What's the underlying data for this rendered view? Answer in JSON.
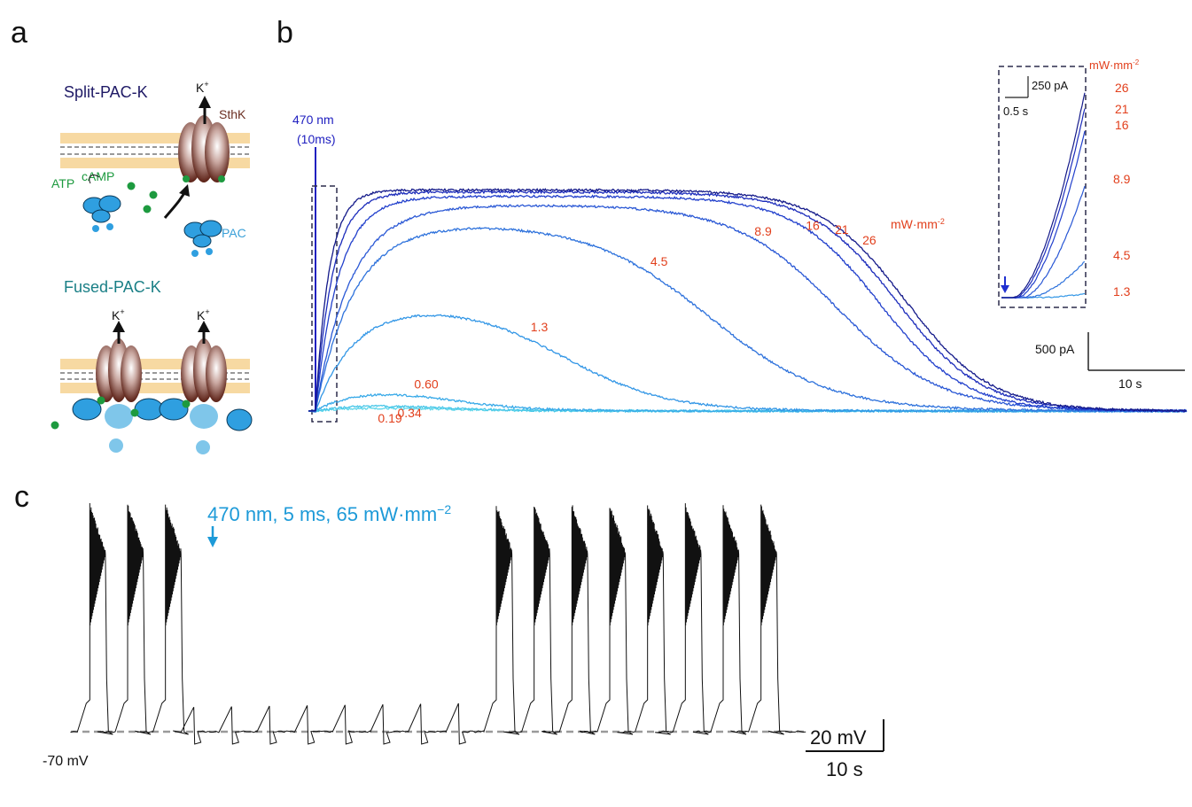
{
  "panels": {
    "a": "a",
    "b": "b",
    "c": "c"
  },
  "panel_a": {
    "split_title": "Split-PAC-K",
    "fused_title": "Fused-PAC-K",
    "k_ion": "K",
    "k_sup": "+",
    "sthk": "SthK",
    "atp": "ATP",
    "camp": "cAMP",
    "pac": "PAC"
  },
  "panel_b": {
    "stim_wavelength": "470 nm",
    "stim_duration": "(10ms)",
    "unit_base": "mW·mm",
    "unit_exp": "-2",
    "scale_current": "500 pA",
    "scale_time": "10 s",
    "inset": {
      "scale_current": "250 pA",
      "scale_time": "0.5 s",
      "unit_base": "mW·mm",
      "unit_exp": "-2",
      "intensity_labels": [
        "26",
        "21",
        "16",
        "8.9",
        "4.5",
        "1.3"
      ]
    }
  },
  "panel_c": {
    "stim_prefix": "470 nm, 5 ms, 65 mW·mm",
    "stim_exp": "−2",
    "baseline_label": "-70 mV",
    "scale_voltage": "20 mV",
    "scale_time": "10 s"
  },
  "colors": {
    "membrane": "#f3c97a",
    "channel": "#6b2f22",
    "pac": "#2f9fe0",
    "camp": "#1d9a3f",
    "labels": "#e2401d",
    "trace": "#111111",
    "baseline": "#9a9a9a"
  },
  "chart_data": [
    {
      "type": "line",
      "panel": "b",
      "xlabel": "",
      "ylabel": "",
      "x_unit": "s",
      "y_unit": "pA",
      "legend_title": "mW·mm-2",
      "series": [
        {
          "name": "0.19",
          "color": "#5fd6ea",
          "peak_pA": 20,
          "peak_time_s": 10,
          "half_decay_s": 14,
          "decay_width_s": 5
        },
        {
          "name": "0.34",
          "color": "#48c6e8",
          "peak_pA": 35,
          "peak_time_s": 10,
          "half_decay_s": 14,
          "decay_width_s": 5
        },
        {
          "name": "0.60",
          "color": "#37a9e8",
          "peak_pA": 115,
          "peak_time_s": 10,
          "half_decay_s": 15,
          "decay_width_s": 5
        },
        {
          "name": "1.3",
          "color": "#3296e6",
          "peak_pA": 510,
          "peak_time_s": 10,
          "half_decay_s": 29,
          "decay_width_s": 6
        },
        {
          "name": "4.5",
          "color": "#2e72dc",
          "peak_pA": 890,
          "peak_time_s": 10,
          "half_decay_s": 46,
          "decay_width_s": 7
        },
        {
          "name": "8.9",
          "color": "#2a58d5",
          "peak_pA": 970,
          "peak_time_s": 9,
          "half_decay_s": 61,
          "decay_width_s": 6
        },
        {
          "name": "16",
          "color": "#2240cc",
          "peak_pA": 1010,
          "peak_time_s": 6,
          "half_decay_s": 66,
          "decay_width_s": 5
        },
        {
          "name": "21",
          "color": "#1c2cbb",
          "peak_pA": 1030,
          "peak_time_s": 4.5,
          "half_decay_s": 68,
          "decay_width_s": 5
        },
        {
          "name": "26",
          "color": "#141a8a",
          "peak_pA": 1040,
          "peak_time_s": 3.5,
          "half_decay_s": 69,
          "decay_width_s": 5
        }
      ],
      "xlim": [
        0,
        102
      ],
      "ylim": [
        0,
        1050
      ]
    },
    {
      "type": "line",
      "panel": "c",
      "xlabel": "",
      "ylabel": "",
      "x_unit": "s",
      "y_unit": "mV",
      "baseline_mV": -70,
      "burst_times_s": [
        0,
        4,
        8,
        43,
        47,
        51,
        55,
        59,
        63,
        67,
        71
      ],
      "subthreshold_times_s": [
        11,
        15,
        19,
        23,
        27,
        31,
        35,
        39
      ],
      "stimulus_time_s": 10,
      "xlim": [
        -2,
        76
      ],
      "ylim": [
        -75,
        15
      ]
    }
  ]
}
